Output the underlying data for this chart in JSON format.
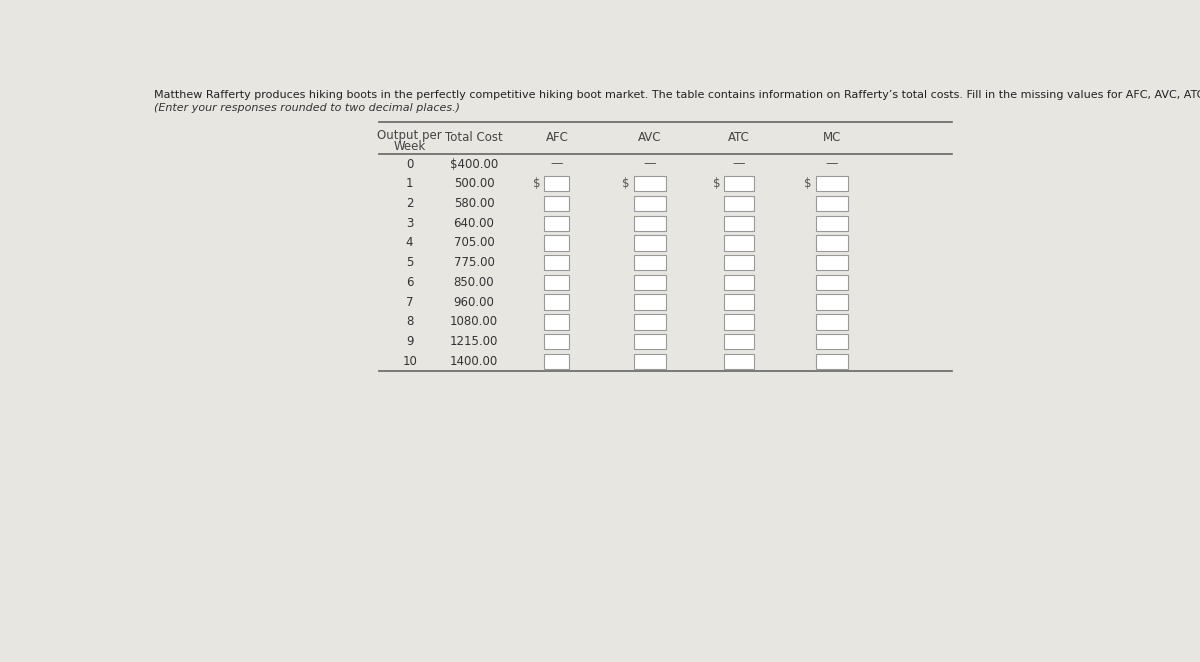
{
  "title_line1": "Matthew Rafferty produces hiking boots in the perfectly competitive hiking boot market. The table contains information on Rafferty’s total costs. Fill in the missing values for AFC, AVC, ATC, and MC in the table.",
  "title_line2": "(Enter your responses rounded to two decimal places.)",
  "background_color": "#e8e6e1",
  "output_weeks": [
    0,
    1,
    2,
    3,
    4,
    5,
    6,
    7,
    8,
    9,
    10
  ],
  "total_costs": [
    "$400.00",
    "500.00",
    "580.00",
    "640.00",
    "705.00",
    "775.00",
    "850.00",
    "960.00",
    "1080.00",
    "1215.00",
    "1400.00"
  ],
  "col_headers": [
    "AFC",
    "AVC",
    "ATC",
    "MC"
  ],
  "input_box_color": "#ffffff",
  "input_box_border": "#aaaaaa",
  "text_color": "#333333",
  "header_text_color": "#444444",
  "dollar_sign_color": "#555555",
  "line_color": "#666666",
  "title_color": "#222222",
  "subtitle_color": "#333333",
  "table_bg": "#e8e6e1"
}
